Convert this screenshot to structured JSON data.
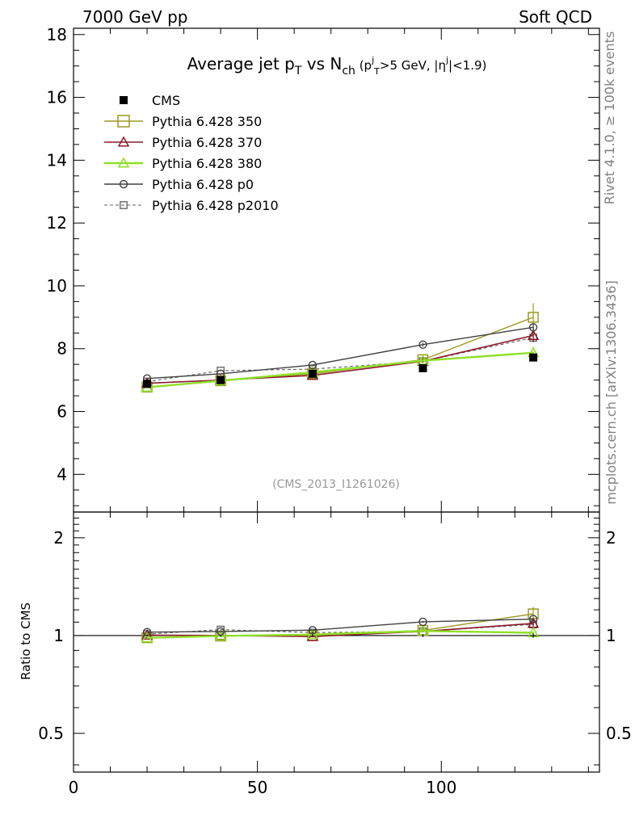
{
  "header": {
    "left": "7000 GeV pp",
    "right": "Soft QCD"
  },
  "side_labels": {
    "rivet": "Rivet 4.1.0, ≥ 100k events",
    "mcplots": "mcplots.cern.ch [arXiv:1306.3436]"
  },
  "title": {
    "main": "Average jet p",
    "main_sub": "T",
    "vs": " vs N",
    "vs_sub": "ch",
    "cut_open": " (p",
    "cut_sup": "j",
    "cut_sub": "T",
    "cut_mid": ">5 GeV, |η",
    "cut_sup2": "j",
    "cut_close": "|<1.9)"
  },
  "analysis_id": "(CMS_2013_I1261026)",
  "ratio_ylabel": "Ratio to CMS",
  "colors": {
    "cms": "#000000",
    "p350": "#9a9a1f",
    "p370": "#8b1a2a",
    "p380": "#8fe027",
    "p0": "#404040",
    "p2010": "#606060"
  },
  "chart_data": {
    "type": "line",
    "x_ticks": [
      0,
      50,
      100
    ],
    "x_range": [
      0,
      143
    ],
    "main_y_ticks": [
      4,
      6,
      8,
      10,
      12,
      14,
      16,
      18
    ],
    "main_y_range": [
      2.8,
      18.2
    ],
    "ratio_y_ticks": [
      0.5,
      1,
      2
    ],
    "ratio_y_ticks_labels": [
      "0.5",
      "1",
      "2"
    ],
    "ratio_y_range": [
      0.38,
      2.4
    ],
    "x": [
      20,
      40,
      65,
      95,
      125
    ],
    "series": [
      {
        "key": "cms",
        "name": "CMS",
        "values": [
          6.88,
          7.0,
          7.2,
          7.38,
          7.72
        ],
        "errors": [
          0.05,
          0.05,
          0.06,
          0.08,
          0.12
        ],
        "ratio": [
          1.0,
          1.0,
          1.0,
          1.0,
          1.0
        ]
      },
      {
        "key": "p350",
        "name": "Pythia 6.428 350",
        "values": [
          6.78,
          6.98,
          7.2,
          7.65,
          9.0
        ],
        "errors": [
          0,
          0,
          0,
          0.1,
          0.45
        ],
        "ratio": [
          0.985,
          0.997,
          1.0,
          1.037,
          1.166
        ]
      },
      {
        "key": "p370",
        "name": "Pythia 6.428 370",
        "values": [
          6.9,
          7.0,
          7.15,
          7.6,
          8.42
        ],
        "errors": [
          0,
          0,
          0,
          0.05,
          0.22
        ],
        "ratio": [
          1.003,
          1.0,
          0.993,
          1.03,
          1.09
        ]
      },
      {
        "key": "p380",
        "name": "Pythia 6.428 380",
        "values": [
          6.77,
          6.98,
          7.25,
          7.62,
          7.87
        ],
        "errors": [
          0,
          0,
          0,
          0,
          0.05
        ],
        "ratio": [
          0.984,
          0.997,
          1.007,
          1.033,
          1.02
        ]
      },
      {
        "key": "p0",
        "name": "Pythia 6.428 p0",
        "values": [
          7.05,
          7.2,
          7.48,
          8.13,
          8.68
        ],
        "errors": [
          0,
          0,
          0,
          0.06,
          0.1
        ],
        "ratio": [
          1.025,
          1.029,
          1.039,
          1.102,
          1.124
        ]
      },
      {
        "key": "p2010",
        "name": "Pythia 6.428 p2010",
        "values": [
          6.95,
          7.3,
          7.35,
          7.6,
          8.35
        ],
        "errors": [
          0,
          0,
          0,
          0,
          0.1
        ],
        "ratio": [
          1.01,
          1.043,
          1.021,
          1.03,
          1.082
        ]
      }
    ]
  }
}
